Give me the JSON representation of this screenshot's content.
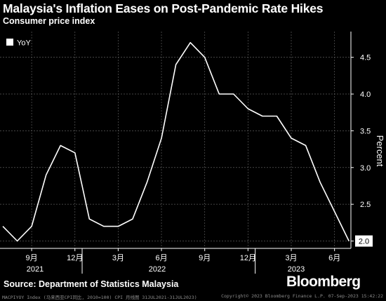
{
  "chart_data": {
    "type": "line",
    "title": "Malaysia's Inflation Eases on Post-Pandemic Rate Hikes",
    "subtitle": "Consumer price index",
    "ylabel": "Percent",
    "ylim": [
      1.9,
      4.85
    ],
    "y_ticks": [
      "2.0",
      "2.5",
      "3.0",
      "3.5",
      "4.0",
      "4.5"
    ],
    "x_tick_labels": [
      "9月",
      "12月",
      "3月",
      "6月",
      "9月",
      "12月",
      "3月",
      "6月"
    ],
    "year_labels": [
      "2021",
      "2022",
      "2023"
    ],
    "grid": true,
    "legend_position": "top-left",
    "series": [
      {
        "name": "YoY",
        "color": "#ffffff",
        "x": [
          "2021-07",
          "2021-08",
          "2021-09",
          "2021-10",
          "2021-11",
          "2021-12",
          "2022-01",
          "2022-02",
          "2022-03",
          "2022-04",
          "2022-05",
          "2022-06",
          "2022-07",
          "2022-08",
          "2022-09",
          "2022-10",
          "2022-11",
          "2022-12",
          "2023-01",
          "2023-02",
          "2023-03",
          "2023-04",
          "2023-05",
          "2023-06",
          "2023-07"
        ],
        "values": [
          2.2,
          2.0,
          2.2,
          2.9,
          3.3,
          3.2,
          2.3,
          2.2,
          2.2,
          2.3,
          2.8,
          3.4,
          4.4,
          4.7,
          4.5,
          4.0,
          4.0,
          3.8,
          3.7,
          3.7,
          3.4,
          3.3,
          2.8,
          2.4,
          2.0
        ]
      }
    ],
    "last_value_label": "2.0"
  },
  "legend_label": "YoY",
  "source": "Source: Department of Statistics Malaysia",
  "brand": "Bloomberg",
  "footer_left": "MACPIYOY Index (马来西亚CPI同比, 2010=100) CPI  月线图  31JUL2021-31JUL2023)",
  "footer_right": "Copyright© 2023 Bloomberg Finance L.P.      07-Sep-2023 15:42:22",
  "colors": {
    "background": "#000000",
    "line": "#ffffff",
    "grid": "#5a5a5a"
  }
}
